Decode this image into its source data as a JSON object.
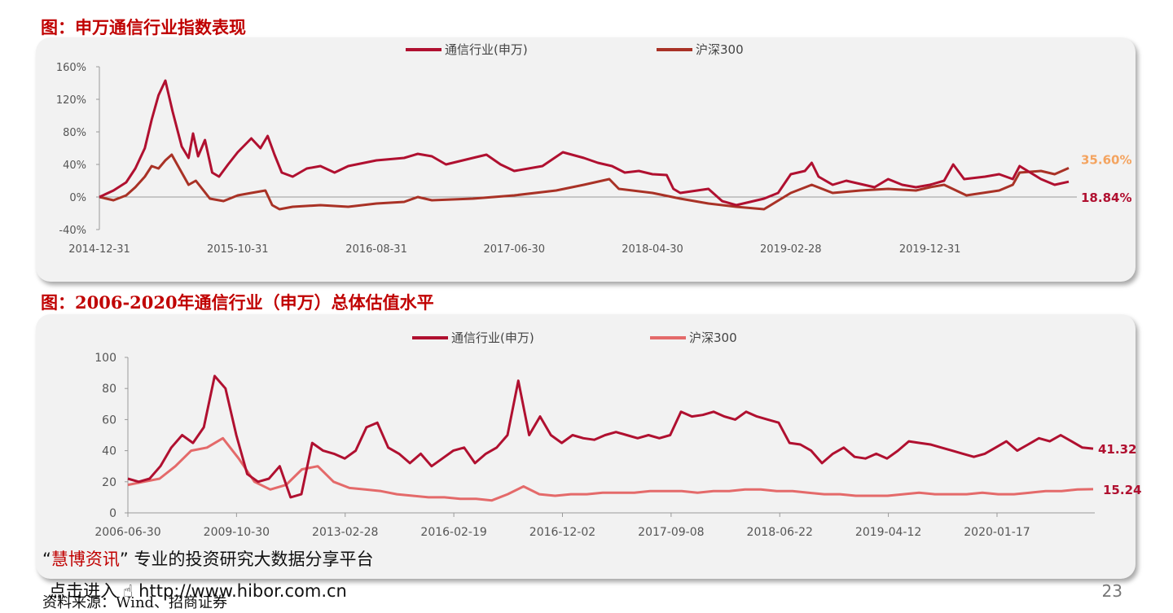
{
  "header": {
    "title1": "图：申万通信行业指数表现",
    "title2": "图：2006-2020年通信行业（申万）总体估值水平"
  },
  "watermark": {
    "open_quote": "“",
    "brand": "慧博资讯",
    "close_quote": "”",
    "slogan": "专业的投资研究大数据分享平台",
    "link_text": "点击进入",
    "url": "http://www.hibor.com.cn"
  },
  "footer": {
    "source": "资料来源：Wind、招商证券",
    "page": "23"
  },
  "colors": {
    "telecom": "#b01030",
    "hs300_top": "#a93226",
    "hs300_bottom": "#e46a6a",
    "last_top_hs": "#f4a460",
    "title": "#c00000"
  },
  "chart_data": [
    {
      "type": "line",
      "title": "",
      "ylim": [
        -40,
        160
      ],
      "y_ticks": [
        "-40%",
        "0%",
        "40%",
        "80%",
        "120%",
        "160%"
      ],
      "x_ticks": [
        "2014-12-31",
        "2015-10-31",
        "2016-08-31",
        "2017-06-30",
        "2018-04-30",
        "2019-02-28",
        "2019-12-31"
      ],
      "x_range": [
        "2014-12-31",
        "2020-10-31"
      ],
      "legend": "top-center",
      "grid": false,
      "series": [
        {
          "name": "通信行业(申万)",
          "points": [
            [
              "2014-12-31",
              0
            ],
            [
              "2015-01-31",
              8
            ],
            [
              "2015-02-28",
              18
            ],
            [
              "2015-03-20",
              35
            ],
            [
              "2015-04-10",
              60
            ],
            [
              "2015-04-25",
              95
            ],
            [
              "2015-05-10",
              125
            ],
            [
              "2015-05-25",
              143
            ],
            [
              "2015-06-10",
              105
            ],
            [
              "2015-06-30",
              62
            ],
            [
              "2015-07-15",
              48
            ],
            [
              "2015-07-25",
              78
            ],
            [
              "2015-08-05",
              50
            ],
            [
              "2015-08-20",
              70
            ],
            [
              "2015-09-05",
              30
            ],
            [
              "2015-09-20",
              25
            ],
            [
              "2015-10-10",
              40
            ],
            [
              "2015-10-31",
              55
            ],
            [
              "2015-11-30",
              72
            ],
            [
              "2015-12-20",
              60
            ],
            [
              "2016-01-05",
              75
            ],
            [
              "2016-01-20",
              52
            ],
            [
              "2016-02-05",
              30
            ],
            [
              "2016-02-29",
              25
            ],
            [
              "2016-03-31",
              35
            ],
            [
              "2016-04-30",
              38
            ],
            [
              "2016-05-31",
              30
            ],
            [
              "2016-06-30",
              38
            ],
            [
              "2016-08-31",
              45
            ],
            [
              "2016-10-31",
              48
            ],
            [
              "2016-11-30",
              53
            ],
            [
              "2016-12-31",
              50
            ],
            [
              "2017-01-31",
              40
            ],
            [
              "2017-03-31",
              48
            ],
            [
              "2017-04-30",
              52
            ],
            [
              "2017-05-31",
              40
            ],
            [
              "2017-06-30",
              32
            ],
            [
              "2017-08-31",
              38
            ],
            [
              "2017-10-15",
              55
            ],
            [
              "2017-11-30",
              48
            ],
            [
              "2017-12-31",
              42
            ],
            [
              "2018-01-31",
              38
            ],
            [
              "2018-02-28",
              30
            ],
            [
              "2018-03-31",
              32
            ],
            [
              "2018-04-30",
              28
            ],
            [
              "2018-05-31",
              27
            ],
            [
              "2018-06-15",
              10
            ],
            [
              "2018-06-30",
              5
            ],
            [
              "2018-08-31",
              10
            ],
            [
              "2018-09-30",
              -5
            ],
            [
              "2018-10-31",
              -10
            ],
            [
              "2018-12-31",
              -2
            ],
            [
              "2019-01-31",
              5
            ],
            [
              "2019-02-28",
              28
            ],
            [
              "2019-03-31",
              32
            ],
            [
              "2019-04-15",
              42
            ],
            [
              "2019-04-30",
              25
            ],
            [
              "2019-05-31",
              15
            ],
            [
              "2019-06-30",
              20
            ],
            [
              "2019-08-31",
              12
            ],
            [
              "2019-09-30",
              22
            ],
            [
              "2019-10-31",
              15
            ],
            [
              "2019-11-30",
              12
            ],
            [
              "2019-12-31",
              15
            ],
            [
              "2020-01-31",
              20
            ],
            [
              "2020-02-20",
              40
            ],
            [
              "2020-03-15",
              22
            ],
            [
              "2020-04-30",
              25
            ],
            [
              "2020-05-31",
              28
            ],
            [
              "2020-06-30",
              22
            ],
            [
              "2020-07-15",
              38
            ],
            [
              "2020-08-31",
              22
            ],
            [
              "2020-09-30",
              15
            ],
            [
              "2020-10-31",
              18.84
            ]
          ]
        },
        {
          "name": "沪深300",
          "points": [
            [
              "2014-12-31",
              0
            ],
            [
              "2015-01-31",
              -4
            ],
            [
              "2015-02-28",
              2
            ],
            [
              "2015-03-20",
              12
            ],
            [
              "2015-04-10",
              25
            ],
            [
              "2015-04-25",
              38
            ],
            [
              "2015-05-10",
              35
            ],
            [
              "2015-05-25",
              45
            ],
            [
              "2015-06-08",
              52
            ],
            [
              "2015-06-30",
              30
            ],
            [
              "2015-07-15",
              15
            ],
            [
              "2015-07-31",
              20
            ],
            [
              "2015-08-31",
              -2
            ],
            [
              "2015-09-30",
              -5
            ],
            [
              "2015-10-31",
              2
            ],
            [
              "2015-11-30",
              5
            ],
            [
              "2015-12-31",
              8
            ],
            [
              "2016-01-15",
              -10
            ],
            [
              "2016-01-31",
              -15
            ],
            [
              "2016-02-29",
              -12
            ],
            [
              "2016-04-30",
              -10
            ],
            [
              "2016-06-30",
              -12
            ],
            [
              "2016-08-31",
              -8
            ],
            [
              "2016-10-31",
              -6
            ],
            [
              "2016-11-30",
              0
            ],
            [
              "2016-12-31",
              -4
            ],
            [
              "2017-03-31",
              -2
            ],
            [
              "2017-06-30",
              2
            ],
            [
              "2017-09-30",
              8
            ],
            [
              "2017-11-30",
              15
            ],
            [
              "2018-01-25",
              22
            ],
            [
              "2018-02-15",
              10
            ],
            [
              "2018-04-30",
              5
            ],
            [
              "2018-06-30",
              -2
            ],
            [
              "2018-08-31",
              -8
            ],
            [
              "2018-10-31",
              -12
            ],
            [
              "2018-12-31",
              -15
            ],
            [
              "2019-02-28",
              5
            ],
            [
              "2019-04-15",
              15
            ],
            [
              "2019-05-31",
              5
            ],
            [
              "2019-07-31",
              8
            ],
            [
              "2019-09-30",
              10
            ],
            [
              "2019-11-30",
              8
            ],
            [
              "2019-12-31",
              12
            ],
            [
              "2020-01-31",
              15
            ],
            [
              "2020-03-20",
              2
            ],
            [
              "2020-05-31",
              8
            ],
            [
              "2020-06-30",
              15
            ],
            [
              "2020-07-15",
              30
            ],
            [
              "2020-08-31",
              32
            ],
            [
              "2020-09-30",
              28
            ],
            [
              "2020-10-31",
              35.6
            ]
          ]
        }
      ],
      "end_labels": {
        "hs300": "35.60%",
        "telecom": "18.84%"
      }
    },
    {
      "type": "line",
      "title": "",
      "ylim": [
        0,
        100
      ],
      "y_ticks": [
        "0",
        "20",
        "40",
        "60",
        "80",
        "100"
      ],
      "x_ticks": [
        "2006-06-30",
        "2009-10-30",
        "2013-02-28",
        "2016-02-19",
        "2016-12-02",
        "2017-09-08",
        "2018-06-22",
        "2019-04-12",
        "2020-01-17"
      ],
      "legend": "top-center",
      "grid": false,
      "series": [
        {
          "name": "通信行业(申万)",
          "values": [
            22,
            20,
            22,
            30,
            42,
            50,
            45,
            55,
            88,
            80,
            50,
            25,
            20,
            22,
            30,
            10,
            12,
            45,
            40,
            38,
            35,
            40,
            55,
            58,
            42,
            38,
            32,
            38,
            30,
            35,
            40,
            42,
            32,
            38,
            42,
            50,
            85,
            50,
            62,
            50,
            45,
            50,
            48,
            47,
            50,
            52,
            50,
            48,
            50,
            48,
            50,
            65,
            62,
            63,
            65,
            62,
            60,
            65,
            62,
            60,
            58,
            45,
            44,
            40,
            32,
            38,
            42,
            36,
            35,
            38,
            35,
            40,
            46,
            45,
            44,
            42,
            40,
            38,
            36,
            38,
            42,
            46,
            40,
            44,
            48,
            46,
            50,
            46,
            42,
            41.32
          ]
        },
        {
          "name": "沪深300",
          "values": [
            18,
            20,
            22,
            30,
            40,
            42,
            48,
            35,
            20,
            15,
            18,
            28,
            30,
            20,
            16,
            15,
            14,
            12,
            11,
            10,
            10,
            9,
            9,
            8,
            12,
            17,
            12,
            11,
            12,
            12,
            13,
            13,
            13,
            14,
            14,
            14,
            13,
            14,
            14,
            15,
            15,
            14,
            14,
            13,
            12,
            12,
            11,
            11,
            11,
            12,
            13,
            12,
            12,
            12,
            13,
            12,
            12,
            13,
            14,
            14,
            15,
            15.24
          ]
        }
      ],
      "end_labels": {
        "telecom": "41.32",
        "hs300": "15.24"
      }
    }
  ]
}
